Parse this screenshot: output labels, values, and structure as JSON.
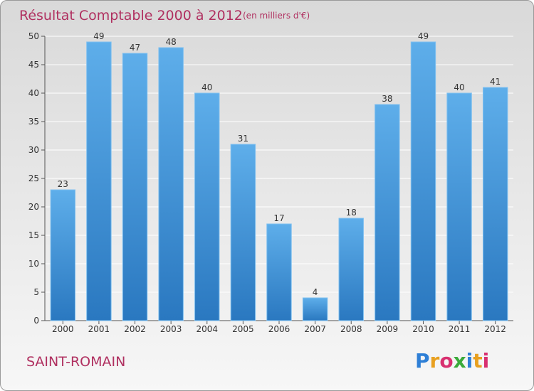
{
  "chart_data": {
    "type": "bar",
    "title": "Résultat Comptable 2000 à 2012",
    "subtitle": "(en milliers d'€)",
    "categories": [
      "2000",
      "2001",
      "2002",
      "2003",
      "2004",
      "2005",
      "2006",
      "2007",
      "2008",
      "2009",
      "2010",
      "2011",
      "2012"
    ],
    "values": [
      23,
      49,
      47,
      48,
      40,
      31,
      17,
      4,
      18,
      38,
      49,
      40,
      41
    ],
    "xlabel": "",
    "ylabel": "",
    "ylim": [
      0,
      50
    ],
    "yticks": [
      0,
      5,
      10,
      15,
      20,
      25,
      30,
      35,
      40,
      45,
      50
    ],
    "grid": true,
    "bar_color": "#3a8fd8"
  },
  "footer": {
    "commune": "SAINT-ROMAIN",
    "logo_text": "Proxiti",
    "logo_colors": [
      "#2e7fd6",
      "#e8a020",
      "#d83070",
      "#3aaa3a",
      "#2e7fd6",
      "#e8a020",
      "#d83070"
    ]
  }
}
